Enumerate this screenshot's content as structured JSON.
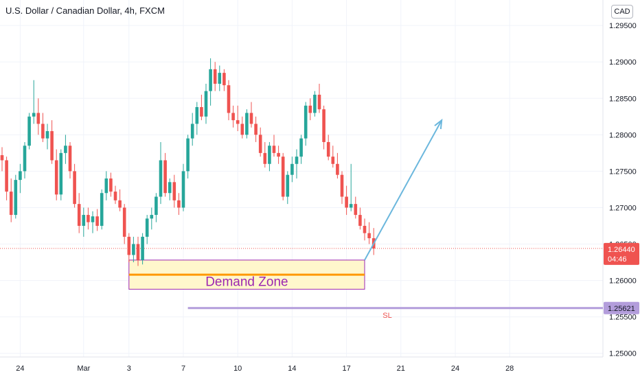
{
  "chart_data": {
    "type": "candlestick",
    "title": "U.S. Dollar / Canadian Dollar, 4h, FXCM",
    "currency": "CAD",
    "ylim": [
      1.2495,
      1.2985
    ],
    "y_ticks": [
      "1.29500",
      "1.29000",
      "1.28500",
      "1.28000",
      "1.27500",
      "1.27000",
      "1.26500",
      "1.26000",
      "1.25500",
      "1.25000"
    ],
    "y_tick_values": [
      1.295,
      1.29,
      1.285,
      1.28,
      1.275,
      1.27,
      1.265,
      1.26,
      1.255,
      1.25
    ],
    "x_ticks": [
      {
        "label": "24",
        "index": 4
      },
      {
        "label": "Mar",
        "index": 18
      },
      {
        "label": "3",
        "index": 28
      },
      {
        "label": "7",
        "index": 40
      },
      {
        "label": "10",
        "index": 52
      },
      {
        "label": "14",
        "index": 64
      },
      {
        "label": "17",
        "index": 76
      },
      {
        "label": "21",
        "index": 88
      },
      {
        "label": "24",
        "index": 100
      },
      {
        "label": "28",
        "index": 112
      }
    ],
    "candles": [
      [
        1.2772,
        1.2783,
        1.275,
        1.2765
      ],
      [
        1.2765,
        1.277,
        1.271,
        1.2722
      ],
      [
        1.2722,
        1.274,
        1.268,
        1.269
      ],
      [
        1.269,
        1.2745,
        1.2685,
        1.2738
      ],
      [
        1.2738,
        1.276,
        1.272,
        1.275
      ],
      [
        1.275,
        1.279,
        1.274,
        1.2785
      ],
      [
        1.2785,
        1.283,
        1.278,
        1.2825
      ],
      [
        1.2825,
        1.2875,
        1.2815,
        1.283
      ],
      [
        1.283,
        1.285,
        1.28,
        1.2815
      ],
      [
        1.2815,
        1.283,
        1.279,
        1.2795
      ],
      [
        1.2795,
        1.2815,
        1.278,
        1.2805
      ],
      [
        1.2805,
        1.282,
        1.276,
        1.2765
      ],
      [
        1.2765,
        1.278,
        1.271,
        1.2718
      ],
      [
        1.2718,
        1.278,
        1.271,
        1.2775
      ],
      [
        1.2775,
        1.28,
        1.276,
        1.2785
      ],
      [
        1.2785,
        1.279,
        1.274,
        1.275
      ],
      [
        1.275,
        1.276,
        1.27,
        1.2705
      ],
      [
        1.2705,
        1.272,
        1.2665,
        1.2675
      ],
      [
        1.2675,
        1.27,
        1.266,
        1.269
      ],
      [
        1.269,
        1.27,
        1.267,
        1.268
      ],
      [
        1.268,
        1.2695,
        1.2665,
        1.2688
      ],
      [
        1.2688,
        1.2698,
        1.2668,
        1.2675
      ],
      [
        1.2675,
        1.2725,
        1.267,
        1.272
      ],
      [
        1.272,
        1.275,
        1.271,
        1.274
      ],
      [
        1.274,
        1.2748,
        1.2715,
        1.2722
      ],
      [
        1.2722,
        1.273,
        1.2705,
        1.271
      ],
      [
        1.271,
        1.2725,
        1.2695,
        1.27
      ],
      [
        1.27,
        1.2705,
        1.265,
        1.266
      ],
      [
        1.266,
        1.2665,
        1.2625,
        1.2635
      ],
      [
        1.2635,
        1.266,
        1.2625,
        1.265
      ],
      [
        1.265,
        1.266,
        1.262,
        1.2628
      ],
      [
        1.2628,
        1.2665,
        1.2622,
        1.266
      ],
      [
        1.266,
        1.269,
        1.265,
        1.2685
      ],
      [
        1.2685,
        1.27,
        1.267,
        1.269
      ],
      [
        1.269,
        1.272,
        1.268,
        1.2715
      ],
      [
        1.2715,
        1.279,
        1.2705,
        1.2765
      ],
      [
        1.2765,
        1.2775,
        1.2715,
        1.272
      ],
      [
        1.272,
        1.274,
        1.271,
        1.2735
      ],
      [
        1.2735,
        1.2745,
        1.27,
        1.271
      ],
      [
        1.271,
        1.272,
        1.269,
        1.27
      ],
      [
        1.27,
        1.276,
        1.2695,
        1.275
      ],
      [
        1.275,
        1.28,
        1.274,
        1.2795
      ],
      [
        1.2795,
        1.283,
        1.2785,
        1.2815
      ],
      [
        1.2815,
        1.2845,
        1.28,
        1.2838
      ],
      [
        1.2838,
        1.2855,
        1.282,
        1.2825
      ],
      [
        1.2825,
        1.287,
        1.2815,
        1.286
      ],
      [
        1.286,
        1.2905,
        1.284,
        1.289
      ],
      [
        1.289,
        1.29,
        1.286,
        1.287
      ],
      [
        1.287,
        1.2895,
        1.286,
        1.2885
      ],
      [
        1.2885,
        1.289,
        1.286,
        1.2868
      ],
      [
        1.2868,
        1.2875,
        1.282,
        1.283
      ],
      [
        1.283,
        1.284,
        1.281,
        1.282
      ],
      [
        1.282,
        1.284,
        1.2805,
        1.2815
      ],
      [
        1.2815,
        1.2825,
        1.2795,
        1.28
      ],
      [
        1.28,
        1.2835,
        1.2795,
        1.283
      ],
      [
        1.283,
        1.2845,
        1.281,
        1.2815
      ],
      [
        1.2815,
        1.2825,
        1.279,
        1.28
      ],
      [
        1.28,
        1.281,
        1.277,
        1.2775
      ],
      [
        1.2775,
        1.279,
        1.2755,
        1.276
      ],
      [
        1.276,
        1.279,
        1.275,
        1.2785
      ],
      [
        1.2785,
        1.28,
        1.277,
        1.2775
      ],
      [
        1.2775,
        1.2785,
        1.276,
        1.277
      ],
      [
        1.277,
        1.2775,
        1.271,
        1.2715
      ],
      [
        1.2715,
        1.275,
        1.2705,
        1.2745
      ],
      [
        1.2745,
        1.277,
        1.2735,
        1.276
      ],
      [
        1.276,
        1.278,
        1.274,
        1.277
      ],
      [
        1.277,
        1.28,
        1.276,
        1.2795
      ],
      [
        1.2795,
        1.2845,
        1.2785,
        1.284
      ],
      [
        1.284,
        1.285,
        1.282,
        1.283
      ],
      [
        1.283,
        1.286,
        1.2825,
        1.2855
      ],
      [
        1.2855,
        1.287,
        1.283,
        1.2835
      ],
      [
        1.2835,
        1.284,
        1.278,
        1.279
      ],
      [
        1.279,
        1.28,
        1.2765,
        1.277
      ],
      [
        1.277,
        1.2785,
        1.2755,
        1.276
      ],
      [
        1.276,
        1.2775,
        1.274,
        1.2745
      ],
      [
        1.2745,
        1.275,
        1.2705,
        1.2715
      ],
      [
        1.2715,
        1.273,
        1.269,
        1.27
      ],
      [
        1.27,
        1.276,
        1.2695,
        1.2705
      ],
      [
        1.2705,
        1.2715,
        1.2685,
        1.269
      ],
      [
        1.269,
        1.27,
        1.267,
        1.2675
      ],
      [
        1.2675,
        1.2685,
        1.2655,
        1.2665
      ],
      [
        1.2665,
        1.268,
        1.265,
        1.2658
      ],
      [
        1.2658,
        1.2672,
        1.2635,
        1.2644
      ]
    ],
    "demand_zone": {
      "label": "Demand Zone",
      "top": 1.2628,
      "bottom": 1.2588,
      "line": 1.2608,
      "start_index": 28,
      "end_index": 80
    },
    "stop_loss": {
      "label": "SL",
      "value": 1.25621,
      "start_index": 41
    },
    "arrow": {
      "from_index": 80,
      "from_value": 1.2628,
      "to_index": 97,
      "to_value": 1.282
    },
    "current_price": {
      "value": 1.2644,
      "label": "1.26440",
      "countdown": "04:46"
    },
    "sl_price_label": "1.25621",
    "colors": {
      "up": "#26a69a",
      "down": "#ef5350",
      "zone_fill": "#fff7cc",
      "zone_border": "#9c27b0",
      "zone_line": "#ff9800",
      "sl_line": "#b39ddb",
      "arrow": "#6bb7dd",
      "axis_text": "#131722"
    }
  }
}
